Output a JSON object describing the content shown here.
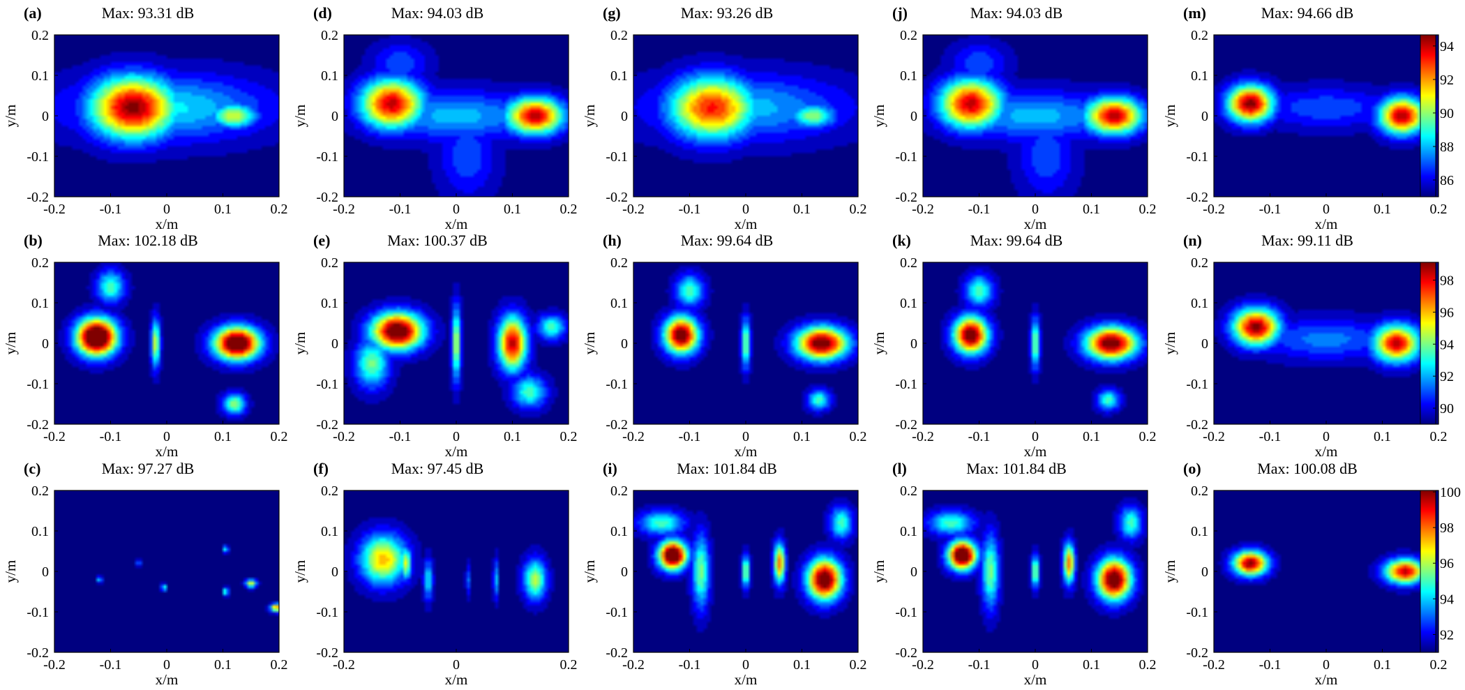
{
  "chart_data": {
    "type": "heatmap",
    "xlabel": "x/m",
    "ylabel": "y/m",
    "xlim": [
      -0.2,
      0.2
    ],
    "ylim": [
      -0.2,
      0.2
    ],
    "colormap": "jet",
    "grid": false,
    "ticks_default": [
      "-0.2",
      "-0.1",
      "0",
      "0.1",
      "0.2"
    ],
    "ticks_sparse": [
      "-0.2",
      "0",
      "0.2"
    ],
    "rows": [
      {
        "colorbar": {
          "min": 85,
          "max": 94.66,
          "ticks": [
            "86",
            "88",
            "90",
            "92",
            "94"
          ]
        }
      },
      {
        "colorbar": {
          "min": 89,
          "max": 99.11,
          "ticks": [
            "90",
            "92",
            "94",
            "96",
            "98"
          ]
        }
      },
      {
        "colorbar": {
          "min": 91,
          "max": 100.08,
          "ticks": [
            "92",
            "94",
            "96",
            "98",
            "100"
          ]
        }
      }
    ],
    "panels": [
      {
        "label": "(a)",
        "title": "Max: 93.31 dB",
        "row": 0,
        "col": 0,
        "cmin": 85,
        "cmax": 93.31,
        "sources": [
          [
            -0.06,
            0.02,
            0.075,
            0.075,
            8.3
          ],
          [
            0.12,
            0.0,
            0.04,
            0.03,
            5.0
          ],
          [
            0.0,
            0.02,
            0.18,
            0.08,
            3.0
          ]
        ]
      },
      {
        "label": "(b)",
        "title": "Max: 102.18 dB",
        "row": 1,
        "col": 0,
        "cmin": 89,
        "cmax": 99.11,
        "sources": [
          [
            -0.125,
            0.015,
            0.035,
            0.045,
            13.2
          ],
          [
            0.125,
            0.0,
            0.04,
            0.04,
            12.0
          ],
          [
            -0.02,
            0.0,
            0.008,
            0.06,
            6.0
          ],
          [
            -0.1,
            0.14,
            0.025,
            0.04,
            4.5
          ],
          [
            0.12,
            -0.15,
            0.02,
            0.025,
            5.5
          ]
        ]
      },
      {
        "label": "(c)",
        "title": "Max: 97.27 dB",
        "row": 2,
        "col": 0,
        "cmin": 91,
        "cmax": 100.08,
        "sources": [
          [
            0.195,
            -0.09,
            0.01,
            0.01,
            7.0
          ],
          [
            0.15,
            -0.03,
            0.01,
            0.01,
            5.5
          ],
          [
            0.105,
            -0.05,
            0.005,
            0.01,
            4.5
          ],
          [
            0.105,
            0.055,
            0.005,
            0.008,
            4.0
          ],
          [
            -0.005,
            -0.04,
            0.005,
            0.008,
            4.0
          ],
          [
            -0.12,
            -0.02,
            0.005,
            0.008,
            3.5
          ],
          [
            -0.05,
            0.02,
            0.004,
            0.008,
            3.0
          ]
        ]
      },
      {
        "label": "(d)",
        "title": "Max: 94.03 dB",
        "row": 0,
        "col": 1,
        "cmin": 85,
        "cmax": 94.66,
        "sources": [
          [
            -0.115,
            0.03,
            0.055,
            0.06,
            9.0
          ],
          [
            0.14,
            0.0,
            0.05,
            0.045,
            9.0
          ],
          [
            0.0,
            0.0,
            0.15,
            0.06,
            3.0
          ],
          [
            0.02,
            -0.1,
            0.05,
            0.1,
            2.0
          ],
          [
            -0.1,
            0.13,
            0.05,
            0.05,
            2.0
          ]
        ]
      },
      {
        "label": "(e)",
        "title": "Max: 100.37 dB",
        "row": 1,
        "col": 1,
        "cmin": 89,
        "cmax": 99.11,
        "sources": [
          [
            -0.105,
            0.03,
            0.045,
            0.045,
            11.4
          ],
          [
            0.1,
            0.0,
            0.025,
            0.065,
            9.5
          ],
          [
            0.0,
            0.0,
            0.008,
            0.09,
            6.0
          ],
          [
            -0.15,
            -0.05,
            0.03,
            0.06,
            5.0
          ],
          [
            0.13,
            -0.12,
            0.03,
            0.04,
            4.5
          ],
          [
            0.17,
            0.04,
            0.025,
            0.03,
            4.5
          ]
        ]
      },
      {
        "label": "(f)",
        "title": "Max: 97.45 dB",
        "row": 2,
        "col": 1,
        "cmin": 91,
        "cmax": 100.08,
        "sources": [
          [
            -0.13,
            0.03,
            0.04,
            0.06,
            6.3
          ],
          [
            -0.09,
            0.02,
            0.01,
            0.04,
            5.5
          ],
          [
            0.14,
            -0.02,
            0.02,
            0.05,
            5.0
          ],
          [
            -0.05,
            -0.02,
            0.008,
            0.05,
            3.5
          ],
          [
            0.07,
            -0.02,
            0.004,
            0.05,
            3.5
          ],
          [
            0.02,
            -0.02,
            0.003,
            0.04,
            3.0
          ]
        ]
      },
      {
        "label": "(g)",
        "title": "Max: 93.26 dB",
        "row": 0,
        "col": 2,
        "cmin": 85,
        "cmax": 94.66,
        "sources": [
          [
            -0.06,
            0.02,
            0.075,
            0.075,
            8.3
          ],
          [
            0.12,
            0.0,
            0.04,
            0.03,
            5.0
          ],
          [
            0.0,
            0.02,
            0.18,
            0.08,
            3.0
          ]
        ]
      },
      {
        "label": "(h)",
        "title": "Max: 99.64 dB",
        "row": 1,
        "col": 2,
        "cmin": 89,
        "cmax": 99.11,
        "sources": [
          [
            -0.115,
            0.02,
            0.03,
            0.045,
            10.8
          ],
          [
            0.135,
            0.0,
            0.045,
            0.04,
            10.8
          ],
          [
            0.0,
            0.0,
            0.008,
            0.06,
            5.5
          ],
          [
            -0.1,
            0.13,
            0.025,
            0.04,
            4.5
          ],
          [
            0.13,
            -0.14,
            0.02,
            0.025,
            4.5
          ]
        ]
      },
      {
        "label": "(i)",
        "title": "Max: 101.84 dB",
        "row": 2,
        "col": 2,
        "cmin": 91,
        "cmax": 100.08,
        "sources": [
          [
            -0.13,
            0.04,
            0.025,
            0.035,
            10.9
          ],
          [
            0.14,
            -0.02,
            0.03,
            0.05,
            10.0
          ],
          [
            0.06,
            0.02,
            0.01,
            0.05,
            7.0
          ],
          [
            0.0,
            0.0,
            0.007,
            0.04,
            5.0
          ],
          [
            -0.08,
            0.0,
            0.015,
            0.09,
            4.5
          ],
          [
            -0.15,
            0.12,
            0.04,
            0.03,
            4.0
          ],
          [
            0.17,
            0.12,
            0.02,
            0.04,
            4.0
          ]
        ]
      },
      {
        "label": "(j)",
        "title": "Max: 94.03 dB",
        "row": 0,
        "col": 3,
        "cmin": 85,
        "cmax": 94.66,
        "sources": [
          [
            -0.115,
            0.03,
            0.055,
            0.06,
            9.0
          ],
          [
            0.14,
            0.0,
            0.05,
            0.045,
            9.0
          ],
          [
            0.0,
            0.0,
            0.15,
            0.06,
            3.0
          ],
          [
            0.02,
            -0.1,
            0.05,
            0.1,
            2.0
          ],
          [
            -0.1,
            0.13,
            0.05,
            0.05,
            2.0
          ]
        ]
      },
      {
        "label": "(k)",
        "title": "Max: 99.64 dB",
        "row": 1,
        "col": 3,
        "cmin": 89,
        "cmax": 99.11,
        "sources": [
          [
            -0.115,
            0.02,
            0.03,
            0.045,
            10.8
          ],
          [
            0.135,
            0.0,
            0.045,
            0.04,
            10.8
          ],
          [
            0.0,
            0.0,
            0.008,
            0.06,
            5.5
          ],
          [
            -0.1,
            0.13,
            0.025,
            0.04,
            4.5
          ],
          [
            0.13,
            -0.14,
            0.02,
            0.025,
            4.5
          ]
        ]
      },
      {
        "label": "(l)",
        "title": "Max: 101.84 dB",
        "row": 2,
        "col": 3,
        "cmin": 91,
        "cmax": 100.08,
        "sources": [
          [
            -0.13,
            0.04,
            0.025,
            0.035,
            10.9
          ],
          [
            0.14,
            -0.02,
            0.03,
            0.05,
            10.0
          ],
          [
            0.06,
            0.02,
            0.01,
            0.05,
            7.0
          ],
          [
            0.0,
            0.0,
            0.007,
            0.04,
            5.0
          ],
          [
            -0.08,
            0.0,
            0.015,
            0.09,
            4.5
          ],
          [
            -0.15,
            0.12,
            0.04,
            0.03,
            4.0
          ],
          [
            0.17,
            0.12,
            0.02,
            0.04,
            4.0
          ]
        ]
      },
      {
        "label": "(m)",
        "title": "Max: 94.66 dB",
        "row": 0,
        "col": 4,
        "cmin": 85,
        "cmax": 94.66,
        "sources": [
          [
            -0.135,
            0.03,
            0.04,
            0.045,
            9.66
          ],
          [
            0.135,
            0.0,
            0.04,
            0.045,
            9.3
          ],
          [
            0.0,
            0.02,
            0.12,
            0.05,
            2.0
          ]
        ]
      },
      {
        "label": "(n)",
        "title": "Max: 99.11 dB",
        "row": 1,
        "col": 4,
        "cmin": 89,
        "cmax": 99.11,
        "sources": [
          [
            -0.125,
            0.04,
            0.04,
            0.045,
            10.1
          ],
          [
            0.125,
            0.0,
            0.04,
            0.045,
            9.5
          ],
          [
            0.0,
            0.01,
            0.12,
            0.05,
            2.5
          ]
        ]
      },
      {
        "label": "(o)",
        "title": "Max: 100.08 dB",
        "row": 2,
        "col": 4,
        "cmin": 91,
        "cmax": 100.08,
        "sources": [
          [
            -0.135,
            0.02,
            0.03,
            0.03,
            9.08
          ],
          [
            0.14,
            0.0,
            0.035,
            0.03,
            8.5
          ]
        ]
      }
    ]
  }
}
